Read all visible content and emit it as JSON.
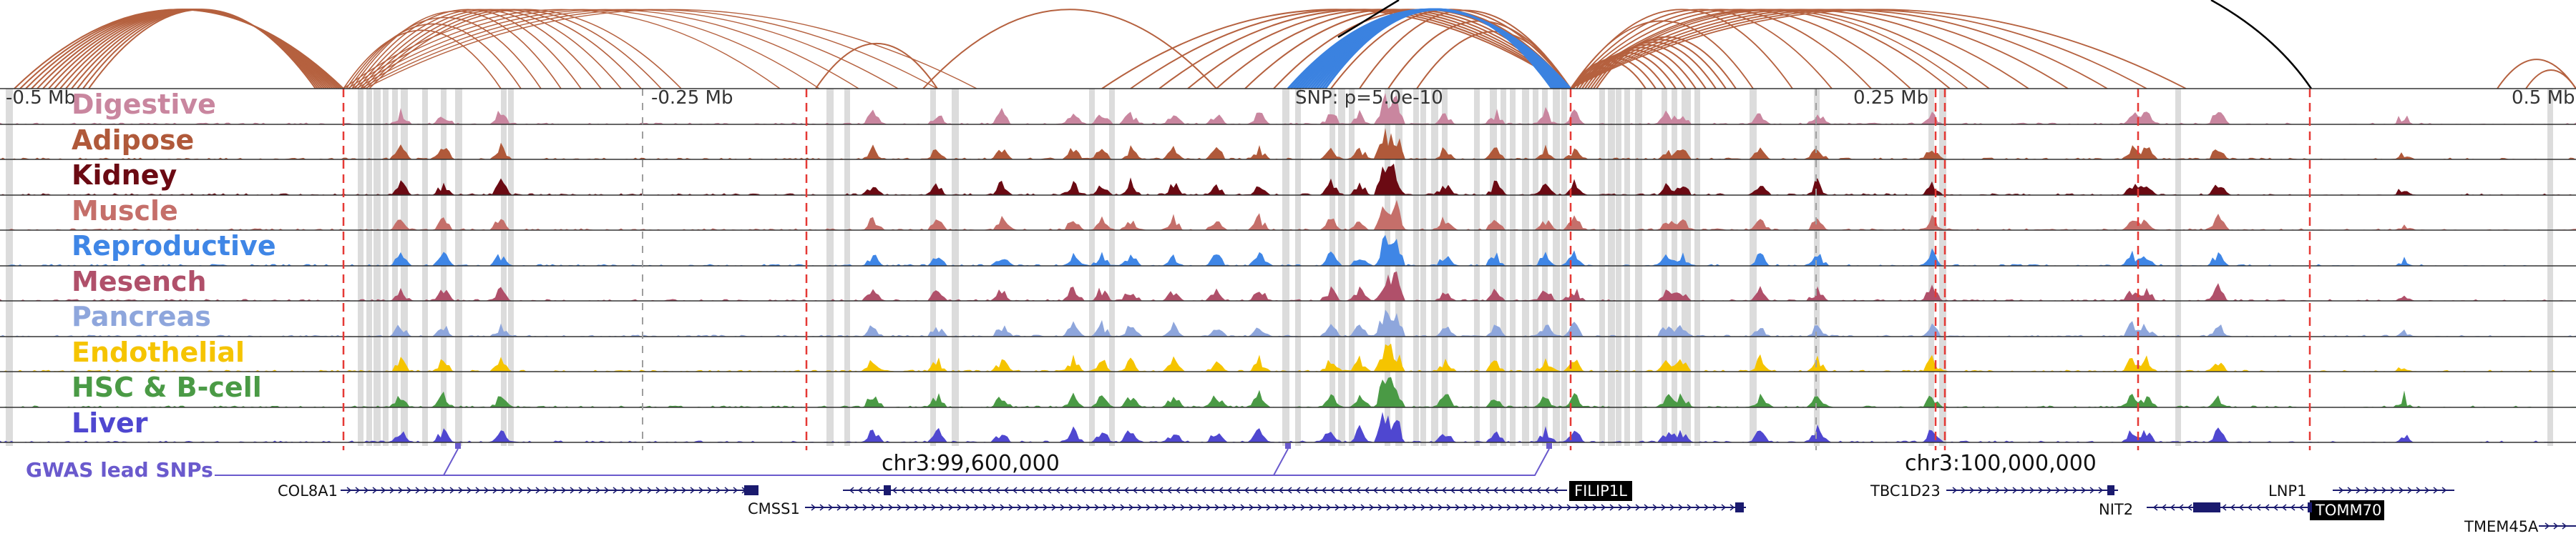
{
  "scale": {
    "labels": [
      "-0.5 Mb",
      "-0.25 Mb",
      "0.25 Mb",
      "0.5 Mb"
    ],
    "snp_label": "SNP: p=5.0e-10"
  },
  "tracks": [
    {
      "name": "Digestive",
      "color": "#c9869f"
    },
    {
      "name": "Adipose",
      "color": "#b0593a"
    },
    {
      "name": "Kidney",
      "color": "#6b0a13"
    },
    {
      "name": "Muscle",
      "color": "#c56f6a"
    },
    {
      "name": "Reproductive",
      "color": "#3f86e6"
    },
    {
      "name": "Mesench",
      "color": "#b0506a"
    },
    {
      "name": "Pancreas",
      "color": "#8ea6dc"
    },
    {
      "name": "Endothelial",
      "color": "#f5c400"
    },
    {
      "name": "HSC & B-cell",
      "color": "#4a9a45"
    },
    {
      "name": "Liver",
      "color": "#4f47d0"
    }
  ],
  "gwas": {
    "label": "GWAS lead SNPs",
    "color": "#6a5acd"
  },
  "coordinates": [
    "chr3:99,600,000",
    "chr3:100,000,000"
  ],
  "genes": [
    {
      "name": "COL8A1",
      "highlight": false
    },
    {
      "name": "FILIP1L",
      "highlight": true
    },
    {
      "name": "CMSS1",
      "highlight": false
    },
    {
      "name": "TBC1D23",
      "highlight": false
    },
    {
      "name": "NIT2",
      "highlight": false
    },
    {
      "name": "TOMM70",
      "highlight": true
    },
    {
      "name": "LNP1",
      "highlight": false
    },
    {
      "name": "TMEM45A",
      "highlight": false
    }
  ],
  "colors": {
    "arc_brown": "#b5613f",
    "arc_blue": "#3b82e0",
    "arc_black": "#000000",
    "guide_red": "#e53935",
    "guide_gray": "#9e9e9e",
    "highlight_band": "#dcdcdc",
    "gene_color": "#1a1a6e"
  }
}
